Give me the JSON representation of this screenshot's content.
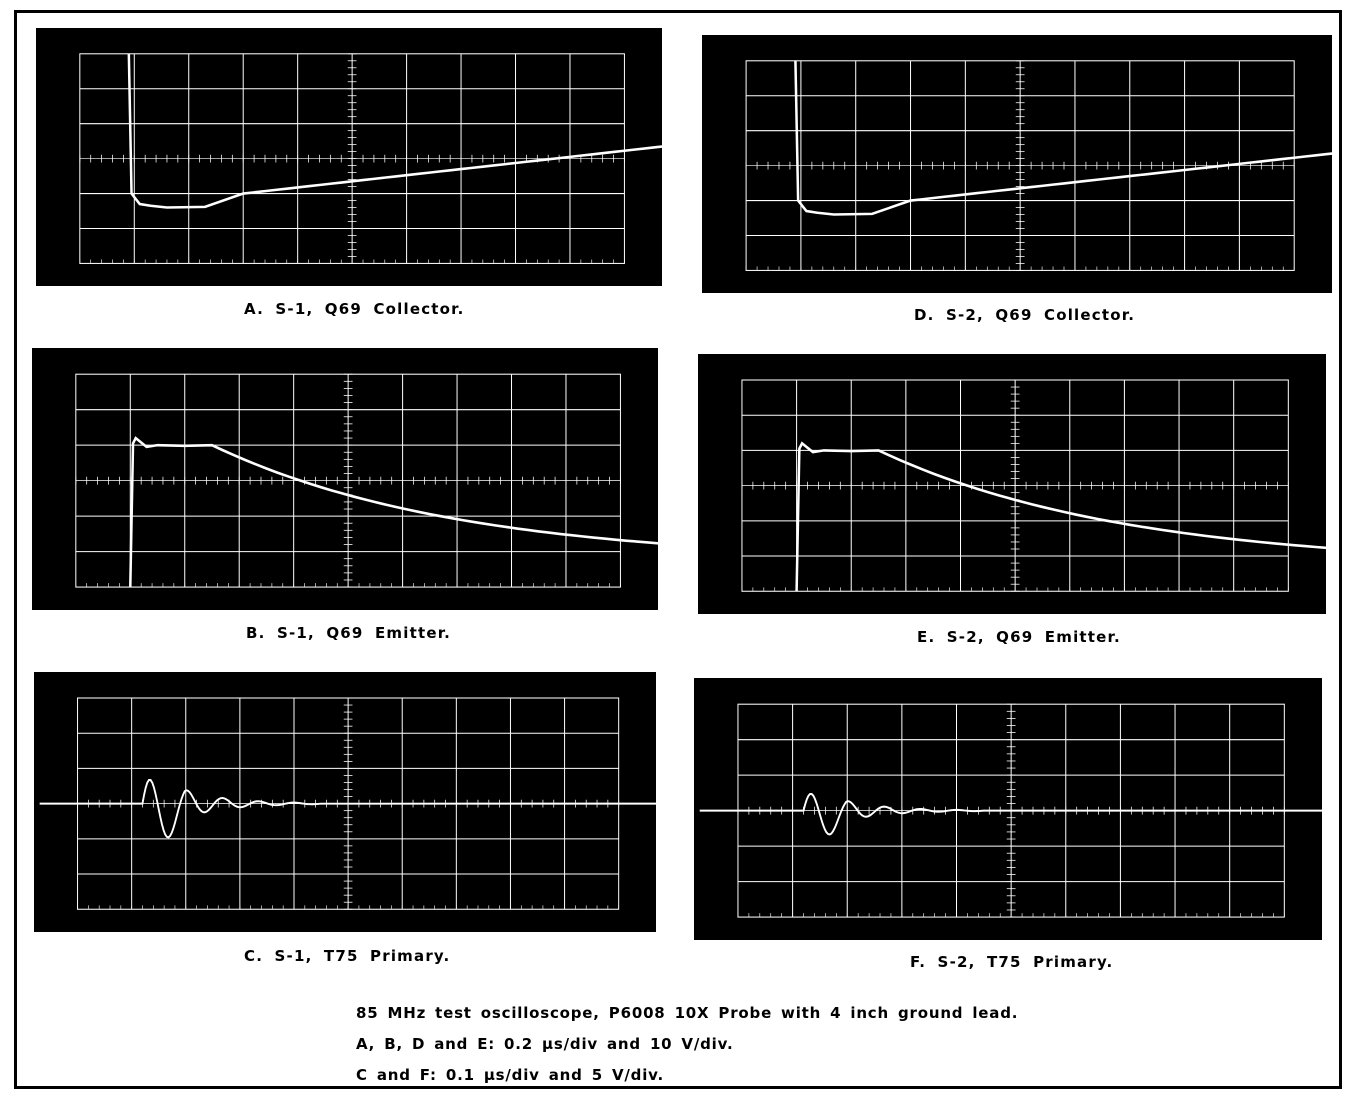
{
  "panels": [
    {
      "id": "A",
      "caption": "A.  S-1,  Q69  Collector.",
      "trace": "collector"
    },
    {
      "id": "D",
      "caption": "D.  S-2,  Q69  Collector.",
      "trace": "collector"
    },
    {
      "id": "B",
      "caption": "B.  S-1,  Q69  Emitter.",
      "trace": "emitter"
    },
    {
      "id": "E",
      "caption": "E.  S-2,  Q69  Emitter.",
      "trace": "emitter"
    },
    {
      "id": "C",
      "caption": "C.  S-1,   T75  Primary.",
      "trace": "primary"
    },
    {
      "id": "F",
      "caption": "F.  S-2,   T75  Primary.",
      "trace": "primary"
    }
  ],
  "notes": {
    "line1": "85 MHz test oscilloscope, P6008 10X Probe with 4 inch ground lead.",
    "line2": "A,  B,  D  and  E:  0.2 μs/div  and  10 V/div.",
    "line3": "C  and  F:  0.1  μs/div  and  5 V/div."
  },
  "colors": {
    "screen": "#000000",
    "graticule": "#ffffff",
    "trace": "#ffffff"
  }
}
